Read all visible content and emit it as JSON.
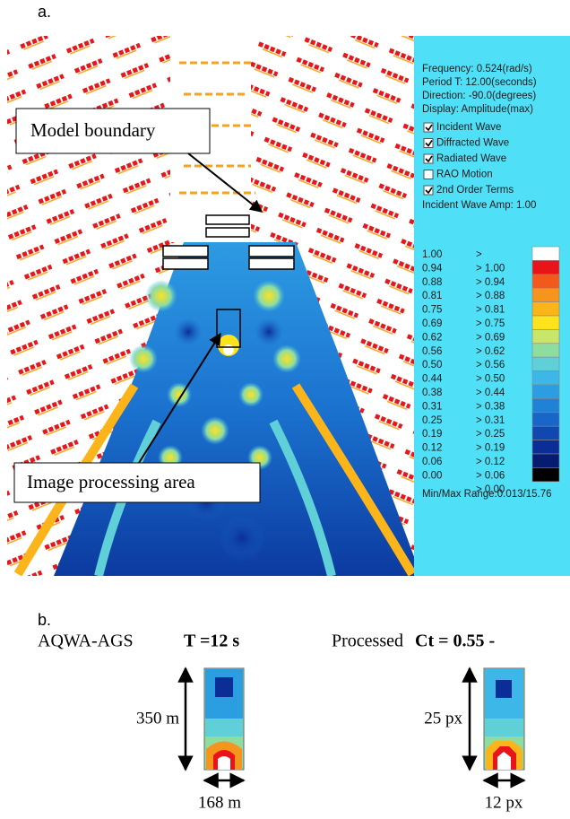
{
  "panel_a": {
    "label": "a.",
    "callouts": [
      "Model boundary",
      "Image processing area"
    ],
    "info": [
      "Frequency: 0.524(rad/s)",
      "Period T: 12.00(seconds)",
      "Direction: -90.0(degrees)",
      "Display: Amplitude(max)"
    ],
    "options": [
      {
        "label": "Incident Wave",
        "checked": true
      },
      {
        "label": "Diffracted Wave",
        "checked": true
      },
      {
        "label": "Radiated Wave",
        "checked": true
      },
      {
        "label": "RAO Motion",
        "checked": false
      },
      {
        "label": "2nd Order Terms",
        "checked": true
      }
    ],
    "amplitude": "Incident Wave Amp: 1.00",
    "legend": {
      "levels": [
        "1.00",
        "0.94",
        "0.88",
        "0.81",
        "0.75",
        "0.69",
        "0.62",
        "0.56",
        "0.50",
        "0.44",
        "0.38",
        "0.31",
        "0.25",
        "0.19",
        "0.12",
        "0.06",
        "0.00"
      ],
      "thresholds": [
        ">",
        "> 1.00",
        "> 0.94",
        "> 0.88",
        "> 0.81",
        "> 0.75",
        "> 0.69",
        "> 0.62",
        "> 0.56",
        "> 0.50",
        "> 0.44",
        "> 0.38",
        "> 0.31",
        "> 0.25",
        "> 0.19",
        "> 0.12",
        "> 0.06",
        "> 0.00"
      ],
      "colors": [
        "#ffffff",
        "#e8141a",
        "#f25a1c",
        "#f7941d",
        "#fbb51a",
        "#fde31c",
        "#c8e66a",
        "#8fdca0",
        "#5fd0d8",
        "#3db7e8",
        "#2a9ee0",
        "#1f82d6",
        "#1866c8",
        "#1048b0",
        "#0a2e96",
        "#051c70",
        "#000000"
      ]
    },
    "range": "Min/Max Range:0.013/15.76"
  },
  "panel_b": {
    "label": "b.",
    "left": {
      "prefix": "AQWA-AGS",
      "value": "T =12 s",
      "height": "350 m",
      "width": "168 m"
    },
    "right": {
      "prefix": "Processed",
      "value": "Ct = 0.55 -",
      "height": "25 px",
      "width": "12 px"
    }
  }
}
